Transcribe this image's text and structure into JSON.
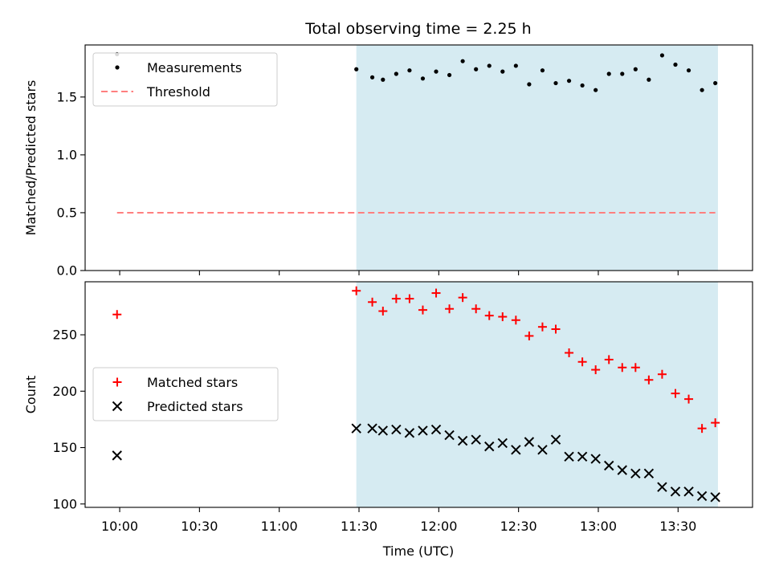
{
  "chart_data": {
    "title": "Total observing time = 2.25 h",
    "shaded_span": {
      "start": "11:29",
      "end": "13:45",
      "color": "#add8e6"
    },
    "xlabel": "Time (UTC)",
    "x_ticks": [
      "10:00",
      "10:30",
      "11:00",
      "11:30",
      "12:00",
      "12:30",
      "13:00",
      "13:30"
    ],
    "xlim": [
      "09:47",
      "13:58"
    ],
    "panels": [
      {
        "type": "scatter",
        "ylabel": "Matched/Predicted stars",
        "ylim": [
          0,
          1.95
        ],
        "y_ticks": [
          "0.0",
          "0.5",
          "1.0",
          "1.5"
        ],
        "legend_position": "upper-left",
        "series": [
          {
            "name": "Measurements",
            "marker": "dot",
            "color": "#000000",
            "points": [
              [
                "09:59",
                1.87
              ],
              [
                "11:29",
                1.74
              ],
              [
                "11:35",
                1.67
              ],
              [
                "11:39",
                1.65
              ],
              [
                "11:44",
                1.7
              ],
              [
                "11:49",
                1.73
              ],
              [
                "11:54",
                1.66
              ],
              [
                "11:59",
                1.72
              ],
              [
                "12:04",
                1.69
              ],
              [
                "12:09",
                1.81
              ],
              [
                "12:14",
                1.74
              ],
              [
                "12:19",
                1.77
              ],
              [
                "12:24",
                1.72
              ],
              [
                "12:29",
                1.77
              ],
              [
                "12:34",
                1.61
              ],
              [
                "12:39",
                1.73
              ],
              [
                "12:44",
                1.62
              ],
              [
                "12:49",
                1.64
              ],
              [
                "12:54",
                1.6
              ],
              [
                "12:59",
                1.56
              ],
              [
                "13:04",
                1.7
              ],
              [
                "13:09",
                1.7
              ],
              [
                "13:14",
                1.74
              ],
              [
                "13:19",
                1.65
              ],
              [
                "13:24",
                1.86
              ],
              [
                "13:29",
                1.78
              ],
              [
                "13:34",
                1.73
              ],
              [
                "13:39",
                1.56
              ],
              [
                "13:44",
                1.62
              ]
            ]
          },
          {
            "name": "Threshold",
            "type": "line",
            "style": "dashed",
            "color": "#ff7f7f",
            "x": [
              "09:59",
              "13:44"
            ],
            "y": 0.5
          }
        ]
      },
      {
        "type": "scatter",
        "ylabel": "Count",
        "ylim": [
          97,
          297
        ],
        "y_ticks": [
          "100",
          "150",
          "200",
          "250"
        ],
        "legend_position": "center-left",
        "series": [
          {
            "name": "Matched stars",
            "marker": "plus",
            "color": "#ff0000",
            "points": [
              [
                "09:59",
                268
              ],
              [
                "11:29",
                289
              ],
              [
                "11:35",
                279
              ],
              [
                "11:39",
                271
              ],
              [
                "11:44",
                282
              ],
              [
                "11:49",
                282
              ],
              [
                "11:54",
                272
              ],
              [
                "11:59",
                287
              ],
              [
                "12:04",
                273
              ],
              [
                "12:09",
                283
              ],
              [
                "12:14",
                273
              ],
              [
                "12:19",
                267
              ],
              [
                "12:24",
                266
              ],
              [
                "12:29",
                263
              ],
              [
                "12:34",
                249
              ],
              [
                "12:39",
                257
              ],
              [
                "12:44",
                255
              ],
              [
                "12:49",
                234
              ],
              [
                "12:54",
                226
              ],
              [
                "12:59",
                219
              ],
              [
                "13:04",
                228
              ],
              [
                "13:09",
                221
              ],
              [
                "13:14",
                221
              ],
              [
                "13:19",
                210
              ],
              [
                "13:24",
                215
              ],
              [
                "13:29",
                198
              ],
              [
                "13:34",
                193
              ],
              [
                "13:39",
                167
              ],
              [
                "13:44",
                172
              ]
            ]
          },
          {
            "name": "Predicted stars",
            "marker": "x",
            "color": "#000000",
            "points": [
              [
                "09:59",
                143
              ],
              [
                "11:29",
                167
              ],
              [
                "11:35",
                167
              ],
              [
                "11:39",
                165
              ],
              [
                "11:44",
                166
              ],
              [
                "11:49",
                163
              ],
              [
                "11:54",
                165
              ],
              [
                "11:59",
                166
              ],
              [
                "12:04",
                161
              ],
              [
                "12:09",
                156
              ],
              [
                "12:14",
                157
              ],
              [
                "12:19",
                151
              ],
              [
                "12:24",
                154
              ],
              [
                "12:29",
                148
              ],
              [
                "12:34",
                155
              ],
              [
                "12:39",
                148
              ],
              [
                "12:44",
                157
              ],
              [
                "12:49",
                142
              ],
              [
                "12:54",
                142
              ],
              [
                "12:59",
                140
              ],
              [
                "13:04",
                134
              ],
              [
                "13:09",
                130
              ],
              [
                "13:14",
                127
              ],
              [
                "13:19",
                127
              ],
              [
                "13:24",
                115
              ],
              [
                "13:29",
                111
              ],
              [
                "13:34",
                111
              ],
              [
                "13:39",
                107
              ],
              [
                "13:44",
                106
              ]
            ]
          }
        ]
      }
    ]
  }
}
